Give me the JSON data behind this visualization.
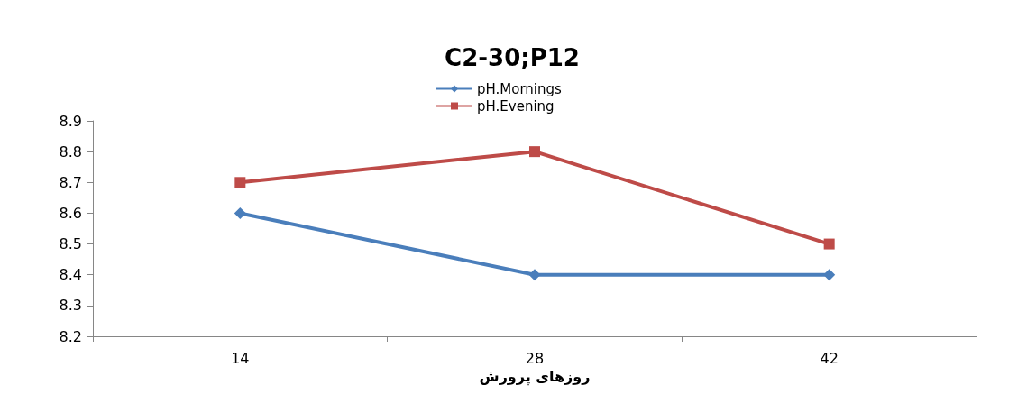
{
  "chart_data": {
    "type": "line",
    "title": "C2-30;P12",
    "xlabel": "روزهای پرورش",
    "categories": [
      "14",
      "28",
      "42"
    ],
    "series": [
      {
        "name": "pH.Mornings",
        "color": "#4a7ebb",
        "marker": "diamond",
        "values": [
          8.6,
          8.4,
          8.4
        ]
      },
      {
        "name": "pH.Evening",
        "color": "#be4b48",
        "marker": "square",
        "values": [
          8.7,
          8.8,
          8.5
        ]
      }
    ],
    "ylim": [
      8.2,
      8.9
    ],
    "yticks": [
      8.2,
      8.3,
      8.4,
      8.5,
      8.6,
      8.7,
      8.8,
      8.9
    ],
    "grid": false,
    "legend": "top",
    "line_style": "solid"
  }
}
